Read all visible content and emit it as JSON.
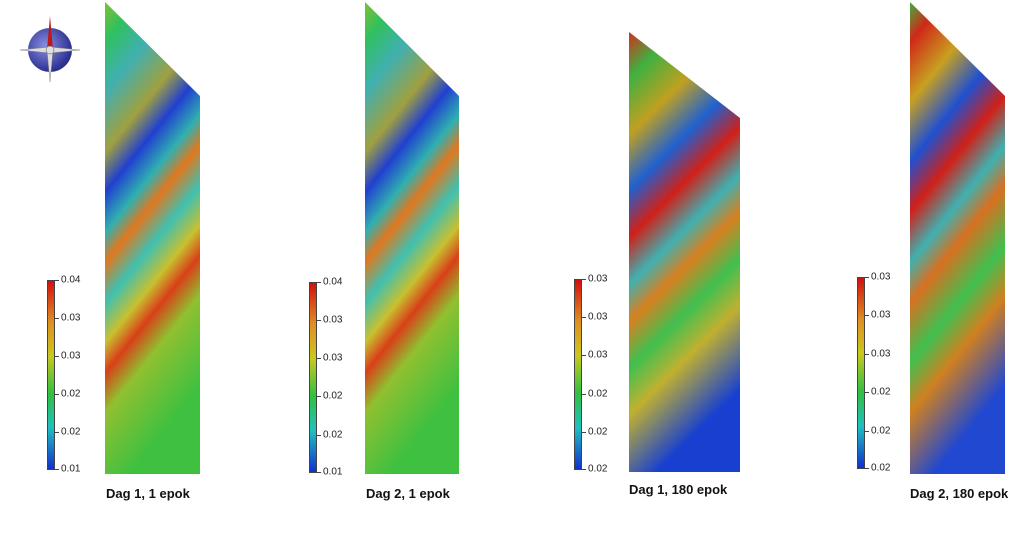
{
  "compass": {
    "icon": "orientation-triad-icon"
  },
  "panels": [
    {
      "caption": "Dag 1, 1 epok",
      "colorbar_ticks": [
        "0.04",
        "0.03",
        "0.03",
        "0.02",
        "0.02",
        "0.01"
      ]
    },
    {
      "caption": "Dag 2, 1 epok",
      "colorbar_ticks": [
        "0.04",
        "0.03",
        "0.03",
        "0.02",
        "0.02",
        "0.01"
      ]
    },
    {
      "caption": "Dag 1, 180 epok",
      "colorbar_ticks": [
        "0.03",
        "0.03",
        "0.03",
        "0.02",
        "0.02",
        "0.02"
      ]
    },
    {
      "caption": "Dag 2, 180 epok",
      "colorbar_ticks": [
        "0.03",
        "0.03",
        "0.03",
        "0.02",
        "0.02",
        "0.02"
      ]
    }
  ],
  "colors": {
    "red": "#d01010",
    "orange": "#e09020",
    "yellow": "#c8c820",
    "green": "#30c040",
    "cyan": "#20c0c0",
    "blue": "#1030d0"
  }
}
